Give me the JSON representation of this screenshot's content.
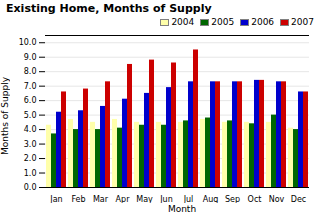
{
  "chart_data": {
    "type": "bar",
    "title": "Existing Home, Months of Supply",
    "xlabel": "Month",
    "ylabel": "Months of Supply",
    "categories": [
      "Jan",
      "Feb",
      "Mar",
      "Apr",
      "May",
      "Jun",
      "Jul",
      "Aug",
      "Sep",
      "Oct",
      "Nov",
      "Dec"
    ],
    "series": [
      {
        "name": "2004",
        "color": "#ffffaa",
        "values": [
          4.3,
          4.7,
          4.5,
          4.7,
          4.5,
          4.5,
          4.5,
          4.7,
          4.5,
          4.5,
          4.5,
          4.1
        ]
      },
      {
        "name": "2005",
        "color": "#006600",
        "values": [
          3.7,
          4.0,
          4.0,
          4.1,
          4.3,
          4.3,
          4.6,
          4.8,
          4.6,
          4.4,
          5.0,
          4.0
        ]
      },
      {
        "name": "2006",
        "color": "#0000cc",
        "values": [
          5.2,
          5.3,
          5.6,
          6.1,
          6.5,
          6.9,
          7.3,
          7.3,
          7.3,
          7.4,
          7.3,
          6.6
        ]
      },
      {
        "name": "2007",
        "color": "#cc0000",
        "values": [
          6.6,
          6.8,
          7.3,
          8.5,
          8.8,
          8.6,
          9.5,
          7.3,
          7.3,
          7.4,
          7.3,
          6.6
        ]
      }
    ],
    "ylim": [
      0.0,
      10.5
    ],
    "yticks": [
      {
        "value": 0,
        "label": "0.0"
      },
      {
        "value": 1,
        "label": "1.0"
      },
      {
        "value": 2,
        "label": "2.0"
      },
      {
        "value": 3,
        "label": "3.0"
      },
      {
        "value": 4,
        "label": "4.0"
      },
      {
        "value": 5,
        "label": "5.0"
      },
      {
        "value": 6,
        "label": "6.0"
      },
      {
        "value": 7,
        "label": "7.0"
      },
      {
        "value": 8,
        "label": "8.0"
      },
      {
        "value": 9,
        "label": "9.0"
      },
      {
        "value": 10,
        "label": "10.0"
      }
    ],
    "grid": true,
    "legend": "upper right"
  }
}
